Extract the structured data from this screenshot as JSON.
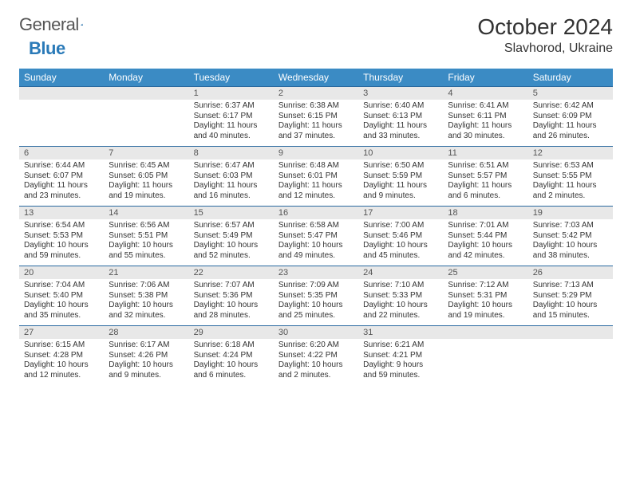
{
  "brand": {
    "word1": "General",
    "word2": "Blue"
  },
  "title": "October 2024",
  "location": "Slavhorod, Ukraine",
  "colors": {
    "header_bg": "#3b8bc4",
    "header_text": "#ffffff",
    "daynum_bg": "#e8e8e8",
    "row_border": "#2a6aa0",
    "brand_blue": "#2a7ab8"
  },
  "day_headers": [
    "Sunday",
    "Monday",
    "Tuesday",
    "Wednesday",
    "Thursday",
    "Friday",
    "Saturday"
  ],
  "weeks": [
    [
      {
        "n": "",
        "sr": "",
        "ss": "",
        "dl": ""
      },
      {
        "n": "",
        "sr": "",
        "ss": "",
        "dl": ""
      },
      {
        "n": "1",
        "sr": "Sunrise: 6:37 AM",
        "ss": "Sunset: 6:17 PM",
        "dl": "Daylight: 11 hours and 40 minutes."
      },
      {
        "n": "2",
        "sr": "Sunrise: 6:38 AM",
        "ss": "Sunset: 6:15 PM",
        "dl": "Daylight: 11 hours and 37 minutes."
      },
      {
        "n": "3",
        "sr": "Sunrise: 6:40 AM",
        "ss": "Sunset: 6:13 PM",
        "dl": "Daylight: 11 hours and 33 minutes."
      },
      {
        "n": "4",
        "sr": "Sunrise: 6:41 AM",
        "ss": "Sunset: 6:11 PM",
        "dl": "Daylight: 11 hours and 30 minutes."
      },
      {
        "n": "5",
        "sr": "Sunrise: 6:42 AM",
        "ss": "Sunset: 6:09 PM",
        "dl": "Daylight: 11 hours and 26 minutes."
      }
    ],
    [
      {
        "n": "6",
        "sr": "Sunrise: 6:44 AM",
        "ss": "Sunset: 6:07 PM",
        "dl": "Daylight: 11 hours and 23 minutes."
      },
      {
        "n": "7",
        "sr": "Sunrise: 6:45 AM",
        "ss": "Sunset: 6:05 PM",
        "dl": "Daylight: 11 hours and 19 minutes."
      },
      {
        "n": "8",
        "sr": "Sunrise: 6:47 AM",
        "ss": "Sunset: 6:03 PM",
        "dl": "Daylight: 11 hours and 16 minutes."
      },
      {
        "n": "9",
        "sr": "Sunrise: 6:48 AM",
        "ss": "Sunset: 6:01 PM",
        "dl": "Daylight: 11 hours and 12 minutes."
      },
      {
        "n": "10",
        "sr": "Sunrise: 6:50 AM",
        "ss": "Sunset: 5:59 PM",
        "dl": "Daylight: 11 hours and 9 minutes."
      },
      {
        "n": "11",
        "sr": "Sunrise: 6:51 AM",
        "ss": "Sunset: 5:57 PM",
        "dl": "Daylight: 11 hours and 6 minutes."
      },
      {
        "n": "12",
        "sr": "Sunrise: 6:53 AM",
        "ss": "Sunset: 5:55 PM",
        "dl": "Daylight: 11 hours and 2 minutes."
      }
    ],
    [
      {
        "n": "13",
        "sr": "Sunrise: 6:54 AM",
        "ss": "Sunset: 5:53 PM",
        "dl": "Daylight: 10 hours and 59 minutes."
      },
      {
        "n": "14",
        "sr": "Sunrise: 6:56 AM",
        "ss": "Sunset: 5:51 PM",
        "dl": "Daylight: 10 hours and 55 minutes."
      },
      {
        "n": "15",
        "sr": "Sunrise: 6:57 AM",
        "ss": "Sunset: 5:49 PM",
        "dl": "Daylight: 10 hours and 52 minutes."
      },
      {
        "n": "16",
        "sr": "Sunrise: 6:58 AM",
        "ss": "Sunset: 5:47 PM",
        "dl": "Daylight: 10 hours and 49 minutes."
      },
      {
        "n": "17",
        "sr": "Sunrise: 7:00 AM",
        "ss": "Sunset: 5:46 PM",
        "dl": "Daylight: 10 hours and 45 minutes."
      },
      {
        "n": "18",
        "sr": "Sunrise: 7:01 AM",
        "ss": "Sunset: 5:44 PM",
        "dl": "Daylight: 10 hours and 42 minutes."
      },
      {
        "n": "19",
        "sr": "Sunrise: 7:03 AM",
        "ss": "Sunset: 5:42 PM",
        "dl": "Daylight: 10 hours and 38 minutes."
      }
    ],
    [
      {
        "n": "20",
        "sr": "Sunrise: 7:04 AM",
        "ss": "Sunset: 5:40 PM",
        "dl": "Daylight: 10 hours and 35 minutes."
      },
      {
        "n": "21",
        "sr": "Sunrise: 7:06 AM",
        "ss": "Sunset: 5:38 PM",
        "dl": "Daylight: 10 hours and 32 minutes."
      },
      {
        "n": "22",
        "sr": "Sunrise: 7:07 AM",
        "ss": "Sunset: 5:36 PM",
        "dl": "Daylight: 10 hours and 28 minutes."
      },
      {
        "n": "23",
        "sr": "Sunrise: 7:09 AM",
        "ss": "Sunset: 5:35 PM",
        "dl": "Daylight: 10 hours and 25 minutes."
      },
      {
        "n": "24",
        "sr": "Sunrise: 7:10 AM",
        "ss": "Sunset: 5:33 PM",
        "dl": "Daylight: 10 hours and 22 minutes."
      },
      {
        "n": "25",
        "sr": "Sunrise: 7:12 AM",
        "ss": "Sunset: 5:31 PM",
        "dl": "Daylight: 10 hours and 19 minutes."
      },
      {
        "n": "26",
        "sr": "Sunrise: 7:13 AM",
        "ss": "Sunset: 5:29 PM",
        "dl": "Daylight: 10 hours and 15 minutes."
      }
    ],
    [
      {
        "n": "27",
        "sr": "Sunrise: 6:15 AM",
        "ss": "Sunset: 4:28 PM",
        "dl": "Daylight: 10 hours and 12 minutes."
      },
      {
        "n": "28",
        "sr": "Sunrise: 6:17 AM",
        "ss": "Sunset: 4:26 PM",
        "dl": "Daylight: 10 hours and 9 minutes."
      },
      {
        "n": "29",
        "sr": "Sunrise: 6:18 AM",
        "ss": "Sunset: 4:24 PM",
        "dl": "Daylight: 10 hours and 6 minutes."
      },
      {
        "n": "30",
        "sr": "Sunrise: 6:20 AM",
        "ss": "Sunset: 4:22 PM",
        "dl": "Daylight: 10 hours and 2 minutes."
      },
      {
        "n": "31",
        "sr": "Sunrise: 6:21 AM",
        "ss": "Sunset: 4:21 PM",
        "dl": "Daylight: 9 hours and 59 minutes."
      },
      {
        "n": "",
        "sr": "",
        "ss": "",
        "dl": ""
      },
      {
        "n": "",
        "sr": "",
        "ss": "",
        "dl": ""
      }
    ]
  ]
}
